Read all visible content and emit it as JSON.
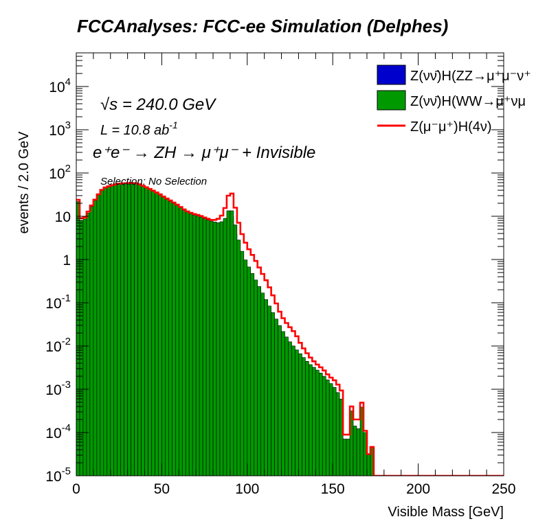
{
  "chart_data": {
    "type": "bar",
    "title": "FCCAnalyses: FCC-ee Simulation (Delphes)",
    "xlabel": "Visible Mass [GeV]",
    "ylabel": "events / 2.0 GeV",
    "xlim": [
      0,
      250
    ],
    "ylim": [
      1e-05,
      60000
    ],
    "yscale": "log",
    "bin_width": 2,
    "x_ticks": [
      "0",
      "50",
      "100",
      "150",
      "200",
      "250"
    ],
    "y_ticks": [
      {
        "base": "10",
        "exp": "-5"
      },
      {
        "base": "10",
        "exp": "-4"
      },
      {
        "base": "10",
        "exp": "-3"
      },
      {
        "base": "10",
        "exp": "-2"
      },
      {
        "base": "10",
        "exp": "-1"
      },
      {
        "base": "1",
        "exp": ""
      },
      {
        "base": "10",
        "exp": ""
      },
      {
        "base": "10",
        "exp": "2"
      },
      {
        "base": "10",
        "exp": "3"
      },
      {
        "base": "10",
        "exp": "4"
      }
    ],
    "annotations": {
      "sqrt_s": "√s = 240.0 GeV",
      "lumi_main": "L = 10.8 ab",
      "lumi_exp": "-1",
      "process": "e⁺e⁻ → ZH → μ⁺μ⁻ + Invisible",
      "selection": "Selection: No Selection"
    },
    "legend_position": "top-right",
    "stacked": true,
    "series": [
      {
        "name": "Z(νν̄)H(ZZ→μ⁺μ⁻ν⁺",
        "style": "fill",
        "color": "#0000cc",
        "anchors": [
          [
            0,
            1.2
          ],
          [
            1,
            1.6
          ],
          [
            2,
            0.6
          ],
          [
            3,
            0.25
          ],
          [
            4,
            0.14
          ],
          [
            5,
            0.09
          ],
          [
            6,
            0.06
          ],
          [
            7,
            0.05
          ],
          [
            8,
            0.04
          ],
          [
            9,
            0.035
          ],
          [
            10,
            0.03
          ],
          [
            11,
            0.035
          ],
          [
            12,
            0.045
          ],
          [
            13,
            0.6
          ],
          [
            14,
            0.9
          ],
          [
            18,
            1.4
          ],
          [
            22,
            2.2
          ],
          [
            26,
            3.1
          ],
          [
            30,
            3.9
          ],
          [
            32,
            4.2
          ],
          [
            34,
            4.1
          ],
          [
            36,
            3.6
          ],
          [
            40,
            2.2
          ],
          [
            44,
            1.3
          ],
          [
            48,
            0.85
          ],
          [
            52,
            0.62
          ],
          [
            56,
            0.5
          ],
          [
            60,
            0.45
          ],
          [
            64,
            0.44
          ],
          [
            68,
            0.46
          ],
          [
            72,
            0.52
          ],
          [
            76,
            0.62
          ],
          [
            80,
            0.8
          ],
          [
            84,
            1.5
          ],
          [
            86,
            2.2
          ],
          [
            88,
            4.5
          ],
          [
            90,
            14
          ],
          [
            92,
            7
          ],
          [
            94,
            2.2
          ],
          [
            96,
            0.9
          ],
          [
            98,
            0.45
          ],
          [
            100,
            0.3
          ],
          [
            104,
            0.12
          ],
          [
            108,
            0.06
          ],
          [
            112,
            0.025
          ],
          [
            116,
            0.012
          ],
          [
            120,
            0.007
          ],
          [
            124,
            0.0045
          ],
          [
            128,
            0.003
          ],
          [
            132,
            0.002
          ],
          [
            136,
            0.0014
          ],
          [
            140,
            0.0009
          ],
          [
            144,
            0.0006
          ],
          [
            148,
            0.00045
          ],
          [
            152,
            0.0003
          ],
          [
            156,
            0.00013
          ],
          [
            158,
            1e-05
          ],
          [
            160,
            0.00012
          ],
          [
            162,
            1e-05
          ],
          [
            164,
            0.00013
          ],
          [
            166,
            1e-05
          ],
          [
            168,
            0.00012
          ],
          [
            170,
            1e-05
          ],
          [
            172,
            0.0001
          ],
          [
            175,
            1e-05
          ]
        ]
      },
      {
        "name": "Z(νν̄)H(WW→μ⁺νμ",
        "style": "fill",
        "color": "#009900",
        "anchors": [
          [
            0,
            28
          ],
          [
            1,
            22
          ],
          [
            2,
            12
          ],
          [
            3,
            8
          ],
          [
            4,
            7.5
          ],
          [
            6,
            10
          ],
          [
            8,
            14
          ],
          [
            10,
            20
          ],
          [
            12,
            27
          ],
          [
            14,
            36
          ],
          [
            16,
            44
          ],
          [
            20,
            50
          ],
          [
            24,
            55
          ],
          [
            28,
            57
          ],
          [
            32,
            58
          ],
          [
            36,
            56
          ],
          [
            40,
            48
          ],
          [
            44,
            40
          ],
          [
            48,
            33
          ],
          [
            52,
            26
          ],
          [
            56,
            21
          ],
          [
            60,
            17
          ],
          [
            64,
            13
          ],
          [
            68,
            11
          ],
          [
            72,
            10
          ],
          [
            76,
            8.5
          ],
          [
            80,
            7.5
          ],
          [
            84,
            7
          ],
          [
            86,
            8
          ],
          [
            88,
            10
          ],
          [
            90,
            18
          ],
          [
            92,
            10
          ],
          [
            94,
            4
          ],
          [
            96,
            2
          ],
          [
            98,
            1.2
          ],
          [
            100,
            0.8
          ],
          [
            104,
            0.4
          ],
          [
            108,
            0.2
          ],
          [
            112,
            0.1
          ],
          [
            116,
            0.05
          ],
          [
            120,
            0.025
          ],
          [
            124,
            0.014
          ],
          [
            128,
            0.009
          ],
          [
            132,
            0.006
          ],
          [
            136,
            0.004
          ],
          [
            140,
            0.003
          ],
          [
            144,
            0.0022
          ],
          [
            148,
            0.0015
          ],
          [
            152,
            0.001
          ],
          [
            156,
            0.0005
          ],
          [
            158,
            1e-05
          ],
          [
            160,
            0.0005
          ],
          [
            162,
            0.0002
          ],
          [
            164,
            0.0001
          ],
          [
            166,
            0.00015
          ],
          [
            168,
            0.001
          ],
          [
            170,
            1e-05
          ],
          [
            172,
            0.0001
          ],
          [
            175,
            1e-05
          ]
        ]
      },
      {
        "name": "Z(μ⁻μ⁺)H(4ν)",
        "style": "line",
        "color": "#ff0000",
        "anchors": [
          [
            0,
            30
          ],
          [
            1,
            24
          ],
          [
            2,
            13
          ],
          [
            3,
            9
          ],
          [
            4,
            8
          ],
          [
            6,
            11
          ],
          [
            8,
            15
          ],
          [
            10,
            21
          ],
          [
            12,
            28
          ],
          [
            14,
            37
          ],
          [
            16,
            45
          ],
          [
            20,
            51
          ],
          [
            24,
            56
          ],
          [
            28,
            58
          ],
          [
            32,
            59
          ],
          [
            36,
            57
          ],
          [
            40,
            49
          ],
          [
            44,
            41
          ],
          [
            48,
            34
          ],
          [
            52,
            27
          ],
          [
            56,
            22
          ],
          [
            60,
            17.5
          ],
          [
            64,
            13.5
          ],
          [
            68,
            11.5
          ],
          [
            72,
            10.5
          ],
          [
            76,
            9
          ],
          [
            80,
            8
          ],
          [
            84,
            9
          ],
          [
            86,
            12
          ],
          [
            88,
            20
          ],
          [
            90,
            45
          ],
          [
            92,
            25
          ],
          [
            94,
            10
          ],
          [
            96,
            5
          ],
          [
            98,
            3
          ],
          [
            100,
            2
          ],
          [
            104,
            1.1
          ],
          [
            108,
            0.55
          ],
          [
            112,
            0.28
          ],
          [
            116,
            0.12
          ],
          [
            120,
            0.05
          ],
          [
            124,
            0.03
          ],
          [
            128,
            0.02
          ],
          [
            132,
            0.01
          ],
          [
            136,
            0.006
          ],
          [
            140,
            0.004
          ],
          [
            144,
            0.003
          ],
          [
            148,
            0.002
          ],
          [
            152,
            0.0015
          ],
          [
            156,
            0.0008
          ],
          [
            158,
            1e-05
          ],
          [
            160,
            0.0008
          ],
          [
            162,
            0.0002
          ],
          [
            164,
            0.0002
          ],
          [
            166,
            0.0002
          ],
          [
            168,
            0.0012
          ],
          [
            170,
            1e-05
          ],
          [
            172,
            0.0001
          ],
          [
            175,
            1e-05
          ],
          [
            250,
            1e-05
          ]
        ]
      }
    ]
  }
}
